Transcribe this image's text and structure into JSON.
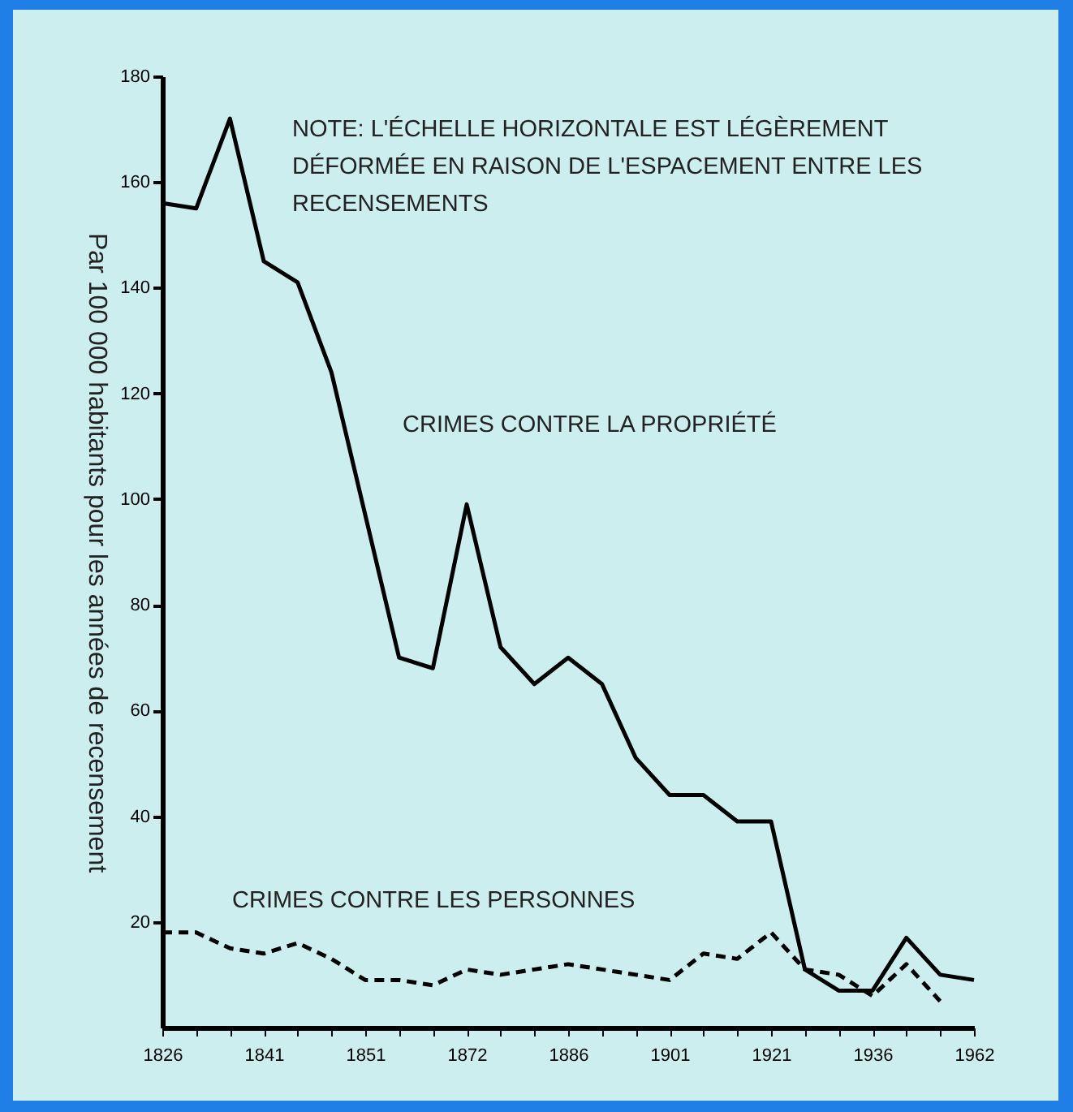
{
  "chart_data": {
    "type": "line",
    "ylabel": "Par 100 000 habitants pour les années de recensement",
    "categories": [
      "1826",
      null,
      null,
      "1841",
      null,
      null,
      "1851",
      null,
      null,
      "1872",
      null,
      null,
      "1886",
      null,
      null,
      "1901",
      null,
      null,
      "1921",
      null,
      null,
      "1936",
      null,
      null,
      "1962"
    ],
    "series": [
      {
        "name": "CRIMES CONTRE LA PROPRIÉTÉ",
        "color": "#000000",
        "line_style": "solid",
        "values": [
          156,
          155,
          172,
          145,
          141,
          124,
          97,
          70,
          68,
          99,
          72,
          65,
          70,
          65,
          51,
          44,
          44,
          39,
          39,
          11,
          7,
          7,
          17,
          10,
          9
        ]
      },
      {
        "name": "CRIMES CONTRE LES PERSONNES",
        "color": "#000000",
        "line_style": "dashed",
        "values": [
          18,
          18,
          15,
          14,
          16,
          13,
          9,
          9,
          8,
          11,
          10,
          11,
          12,
          11,
          10,
          9,
          14,
          13,
          18,
          11,
          10,
          6,
          12,
          5,
          null
        ]
      }
    ],
    "ylim": [
      0,
      180
    ],
    "yticks": [
      20,
      40,
      60,
      80,
      100,
      120,
      140,
      160,
      180
    ],
    "annotations": [
      "NOTE: L'ÉCHELLE HORIZONTALE EST LÉGÈREMENT\nDÉFORMÉE EN RAISON DE L'ESPACEMENT ENTRE LES\nRECENSEMENTS"
    ],
    "legend": false,
    "grid": false
  }
}
